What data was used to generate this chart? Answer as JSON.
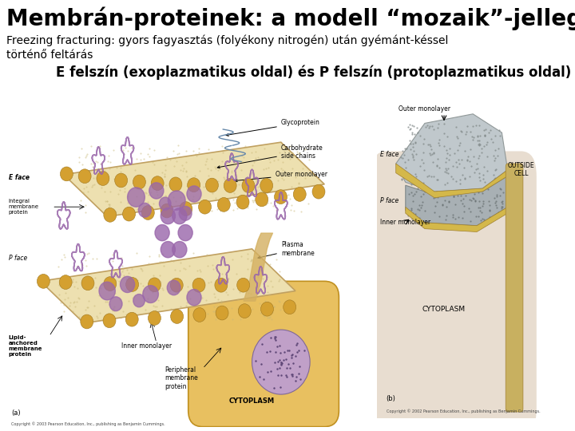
{
  "title": "Membrán-proteinek: a modell “mozaik”-jellege",
  "subtitle": "Freezing fracturing: gyors fagyasztás (folyékony nitrogén) után gyémánt-késsel\ntörténő feltárás",
  "caption": "E felszín (exoplazmatikus oldal) és P felszín (protoplazmatikus oldal)",
  "background_color": "#ffffff",
  "title_fontsize": 20,
  "subtitle_fontsize": 10,
  "caption_fontsize": 12,
  "title_color": "#000000",
  "subtitle_color": "#000000",
  "caption_color": "#000000",
  "fig_width": 7.2,
  "fig_height": 5.4,
  "dpi": 100
}
